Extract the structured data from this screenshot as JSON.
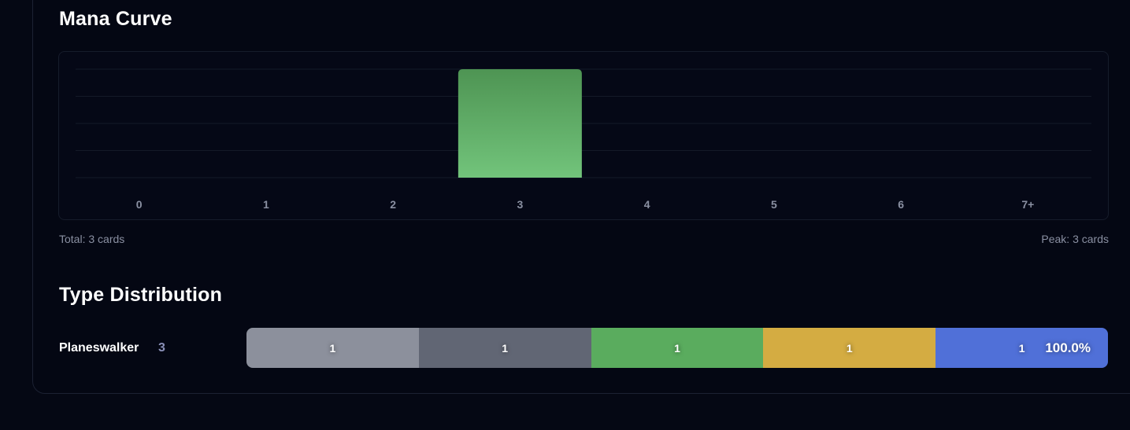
{
  "mana_curve": {
    "title": "Mana Curve",
    "total_text": "Total: 3 cards",
    "peak_text": "Peak: 3 cards"
  },
  "chart_data": {
    "type": "bar",
    "title": "Mana Curve",
    "categories": [
      "0",
      "1",
      "2",
      "3",
      "4",
      "5",
      "6",
      "7+"
    ],
    "values": [
      0,
      0,
      0,
      3,
      0,
      0,
      0,
      0
    ],
    "ylim": [
      0,
      3
    ],
    "grid": true,
    "bar_color_top": "#4e9453",
    "bar_color_bottom": "#72c47b"
  },
  "type_distribution": {
    "title": "Type Distribution",
    "rows": [
      {
        "label": "Planeswalker",
        "count": "3",
        "percent": "100.0%",
        "segments": [
          {
            "value": "1",
            "color": "#8c909c"
          },
          {
            "value": "1",
            "color": "#616674"
          },
          {
            "value": "1",
            "color": "#5aac5e"
          },
          {
            "value": "1",
            "color": "#d4ac42"
          },
          {
            "value": "1",
            "color": "#5070d8"
          }
        ]
      }
    ]
  }
}
